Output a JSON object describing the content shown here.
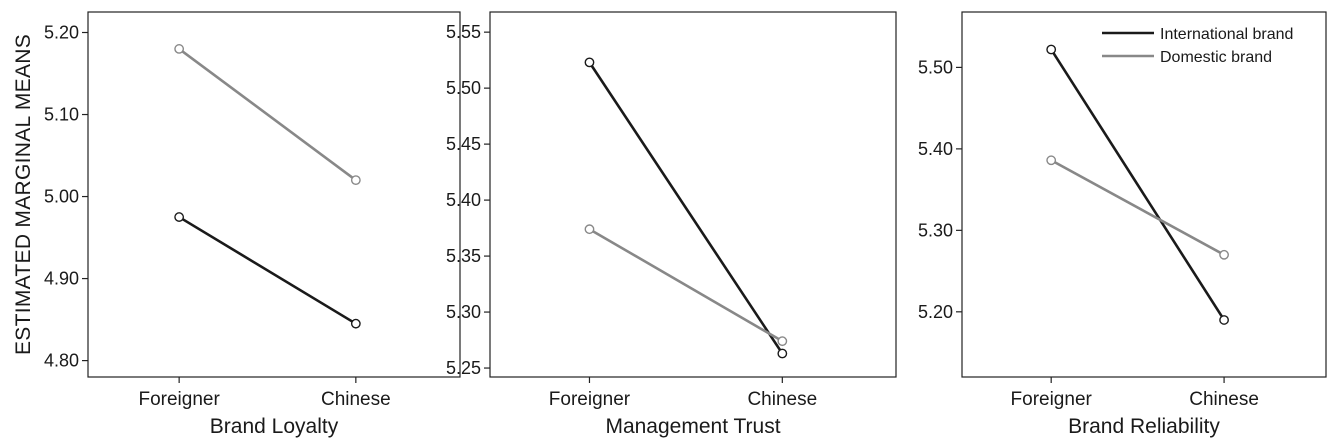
{
  "ylabel": "ESTIMATED MARGINAL MEANS",
  "colors": {
    "International brand": "#1a1a1a",
    "Domestic brand": "#888888"
  },
  "chart_data": [
    {
      "type": "line",
      "xlabel": "Brand Loyalty",
      "ylabel": "ESTIMATED MARGINAL MEANS",
      "categories": [
        "Foreigner",
        "Chinese"
      ],
      "ylim": [
        4.78,
        5.225
      ],
      "yticks": [
        4.8,
        4.9,
        5.0,
        5.1,
        5.2
      ],
      "ytick_labels": [
        "4.80",
        "4.90",
        "5.00",
        "5.10",
        "5.20"
      ],
      "series": [
        {
          "name": "International brand",
          "values": [
            4.975,
            4.845
          ]
        },
        {
          "name": "Domestic brand",
          "values": [
            5.18,
            5.02
          ]
        }
      ],
      "legend": false
    },
    {
      "type": "line",
      "xlabel": "Management Trust",
      "categories": [
        "Foreigner",
        "Chinese"
      ],
      "ylim": [
        5.242,
        5.568
      ],
      "yticks": [
        5.25,
        5.3,
        5.35,
        5.4,
        5.45,
        5.5,
        5.55
      ],
      "ytick_labels": [
        "5.25",
        "5.30",
        "5.35",
        "5.40",
        "5.45",
        "5.50",
        "5.55"
      ],
      "series": [
        {
          "name": "International brand",
          "values": [
            5.523,
            5.263
          ]
        },
        {
          "name": "Domestic brand",
          "values": [
            5.374,
            5.274
          ]
        }
      ],
      "legend": false
    },
    {
      "type": "line",
      "xlabel": "Brand Reliability",
      "categories": [
        "Foreigner",
        "Chinese"
      ],
      "ylim": [
        5.12,
        5.568
      ],
      "yticks": [
        5.2,
        5.3,
        5.4,
        5.5
      ],
      "ytick_labels": [
        "5.20",
        "5.30",
        "5.40",
        "5.50"
      ],
      "series": [
        {
          "name": "International brand",
          "values": [
            5.522,
            5.19
          ]
        },
        {
          "name": "Domestic brand",
          "values": [
            5.386,
            5.27
          ]
        }
      ],
      "legend": true,
      "legend_position": "top-right",
      "legend_entries": [
        "International brand",
        "Domestic brand"
      ]
    }
  ]
}
